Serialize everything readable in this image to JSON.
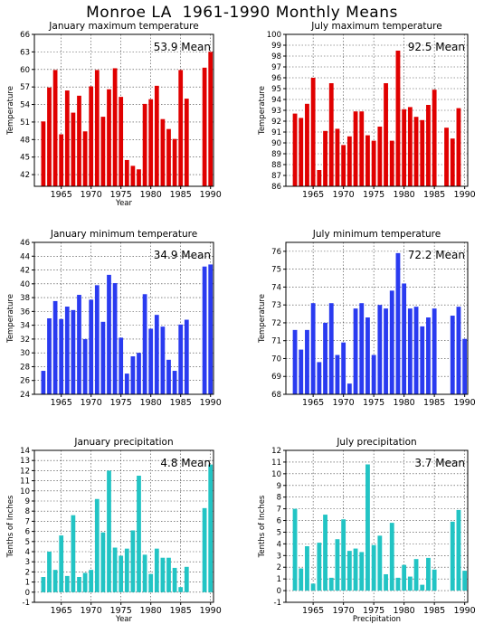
{
  "title": "Monroe LA  1961-1990 Monthly Means",
  "colors": {
    "tmax": "#e00000",
    "tmin": "#2a3bf0",
    "precip": "#22c4c4"
  },
  "chart_data": [
    {
      "id": "jan-max",
      "type": "bar",
      "title": "January maximum temperature",
      "mean_label": "53.9  Mean",
      "xlabel": "Year",
      "ylabel": "Temperature",
      "ylim": [
        40,
        66
      ],
      "yticks": [
        42,
        45,
        48,
        51,
        54,
        57,
        60,
        63,
        66
      ],
      "xticks": [
        1965,
        1970,
        1975,
        1980,
        1985,
        1990
      ],
      "grid": true,
      "color_key": "tmax",
      "x": [
        1962,
        1963,
        1964,
        1965,
        1966,
        1967,
        1968,
        1969,
        1970,
        1971,
        1972,
        1973,
        1974,
        1975,
        1976,
        1977,
        1978,
        1979,
        1980,
        1981,
        1982,
        1983,
        1984,
        1985,
        1986,
        1987,
        1988,
        1989,
        1990
      ],
      "values": [
        51.1,
        56.9,
        59.9,
        48.9,
        56.4,
        52.6,
        55.5,
        49.4,
        57.1,
        59.9,
        51.9,
        56.6,
        60.2,
        55.3,
        44.5,
        43.5,
        42.9,
        54.1,
        54.9,
        57.2,
        51.5,
        49.8,
        48.1,
        59.9,
        55.0,
        null,
        null,
        60.3,
        63.0
      ]
    },
    {
      "id": "jul-max",
      "type": "bar",
      "title": "July maximum temperature",
      "mean_label": "92.5  Mean",
      "xlabel": "",
      "ylabel": "Temperature",
      "ylim": [
        86,
        100
      ],
      "yticks": [
        86,
        87,
        88,
        89,
        90,
        91,
        92,
        93,
        94,
        95,
        96,
        97,
        98,
        99,
        100
      ],
      "xticks": [
        1965,
        1970,
        1975,
        1980,
        1985,
        1990
      ],
      "grid": true,
      "color_key": "tmax",
      "x": [
        1962,
        1963,
        1964,
        1965,
        1966,
        1967,
        1968,
        1969,
        1970,
        1971,
        1972,
        1973,
        1974,
        1975,
        1976,
        1977,
        1978,
        1979,
        1980,
        1981,
        1982,
        1983,
        1984,
        1985,
        1986,
        1987,
        1988,
        1989,
        1990
      ],
      "values": [
        92.7,
        92.3,
        93.6,
        96.0,
        87.5,
        91.1,
        95.5,
        91.3,
        89.8,
        90.6,
        92.9,
        92.9,
        90.7,
        90.2,
        91.5,
        95.5,
        90.2,
        98.5,
        93.1,
        93.3,
        92.4,
        92.1,
        93.5,
        94.9,
        null,
        91.4,
        90.4,
        93.2,
        null
      ]
    },
    {
      "id": "jan-min",
      "type": "bar",
      "title": "January minimum temperature",
      "mean_label": "34.9  Mean",
      "xlabel": "",
      "ylabel": "Temperature",
      "ylim": [
        24,
        46
      ],
      "yticks": [
        24,
        26,
        28,
        30,
        32,
        34,
        36,
        38,
        40,
        42,
        44,
        46
      ],
      "xticks": [
        1965,
        1970,
        1975,
        1980,
        1985,
        1990
      ],
      "grid": true,
      "color_key": "tmin",
      "x": [
        1962,
        1963,
        1964,
        1965,
        1966,
        1967,
        1968,
        1969,
        1970,
        1971,
        1972,
        1973,
        1974,
        1975,
        1976,
        1977,
        1978,
        1979,
        1980,
        1981,
        1982,
        1983,
        1984,
        1985,
        1986,
        1987,
        1988,
        1989,
        1990
      ],
      "values": [
        27.4,
        35.0,
        37.5,
        34.9,
        36.7,
        36.2,
        38.4,
        32.0,
        37.7,
        39.8,
        34.5,
        41.3,
        40.1,
        32.2,
        27.0,
        29.5,
        30.0,
        38.5,
        33.5,
        35.5,
        33.8,
        29.0,
        27.4,
        34.1,
        34.8,
        null,
        null,
        42.5,
        42.8
      ]
    },
    {
      "id": "jul-min",
      "type": "bar",
      "title": "July minimum temperature",
      "mean_label": "72.2  Mean",
      "xlabel": "",
      "ylabel": "Temperature",
      "ylim": [
        68,
        76.5
      ],
      "yticks": [
        68,
        69,
        70,
        71,
        72,
        73,
        74,
        75,
        76
      ],
      "xticks": [
        1965,
        1970,
        1975,
        1980,
        1985,
        1990
      ],
      "grid": true,
      "color_key": "tmin",
      "x": [
        1962,
        1963,
        1964,
        1965,
        1966,
        1967,
        1968,
        1969,
        1970,
        1971,
        1972,
        1973,
        1974,
        1975,
        1976,
        1977,
        1978,
        1979,
        1980,
        1981,
        1982,
        1983,
        1984,
        1985,
        1986,
        1987,
        1988,
        1989,
        1990
      ],
      "values": [
        71.6,
        70.5,
        71.6,
        73.1,
        69.8,
        72.0,
        73.1,
        70.2,
        70.9,
        68.6,
        72.8,
        73.1,
        72.3,
        70.2,
        73.0,
        72.8,
        73.8,
        75.9,
        74.2,
        72.8,
        72.9,
        71.8,
        72.3,
        72.8,
        null,
        null,
        72.4,
        72.9,
        71.1
      ]
    },
    {
      "id": "jan-precip",
      "type": "bar",
      "title": "January precipitation",
      "mean_label": "4.8  Mean",
      "xlabel": "Year",
      "ylabel": "Tenths of Inches",
      "ylim": [
        -1,
        14
      ],
      "yticks": [
        -1,
        0,
        1,
        2,
        3,
        4,
        5,
        6,
        7,
        8,
        9,
        10,
        11,
        12,
        13,
        14
      ],
      "xticks": [
        1965,
        1970,
        1975,
        1980,
        1985,
        1990
      ],
      "grid": true,
      "color_key": "precip",
      "x": [
        1962,
        1963,
        1964,
        1965,
        1966,
        1967,
        1968,
        1969,
        1970,
        1971,
        1972,
        1973,
        1974,
        1975,
        1976,
        1977,
        1978,
        1979,
        1980,
        1981,
        1982,
        1983,
        1984,
        1985,
        1986,
        1987,
        1988,
        1989,
        1990
      ],
      "values": [
        1.5,
        4.0,
        2.2,
        5.6,
        1.6,
        7.6,
        1.5,
        1.9,
        2.2,
        9.2,
        5.9,
        12.0,
        4.4,
        3.6,
        4.3,
        6.1,
        11.5,
        3.7,
        1.8,
        4.3,
        3.4,
        3.4,
        2.4,
        0.5,
        2.5,
        null,
        null,
        8.3,
        12.6
      ]
    },
    {
      "id": "jul-precip",
      "type": "bar",
      "title": "July precipitation",
      "mean_label": "3.7  Mean",
      "xlabel": "Precipitation",
      "ylabel": "Tenths of Inches",
      "ylim": [
        -1,
        12
      ],
      "yticks": [
        -1,
        0,
        1,
        2,
        3,
        4,
        5,
        6,
        7,
        8,
        9,
        10,
        11,
        12
      ],
      "xticks": [
        1965,
        1970,
        1975,
        1980,
        1985,
        1990
      ],
      "grid": true,
      "color_key": "precip",
      "x": [
        1962,
        1963,
        1964,
        1965,
        1966,
        1967,
        1968,
        1969,
        1970,
        1971,
        1972,
        1973,
        1974,
        1975,
        1976,
        1977,
        1978,
        1979,
        1980,
        1981,
        1982,
        1983,
        1984,
        1985,
        1986,
        1987,
        1988,
        1989,
        1990
      ],
      "values": [
        7.0,
        1.9,
        3.8,
        0.6,
        4.1,
        6.5,
        1.1,
        4.4,
        6.1,
        3.4,
        3.6,
        3.3,
        10.8,
        3.9,
        4.7,
        1.4,
        5.8,
        1.1,
        2.2,
        1.2,
        2.7,
        0.5,
        2.8,
        1.8,
        null,
        null,
        5.9,
        6.9,
        1.7
      ]
    }
  ]
}
